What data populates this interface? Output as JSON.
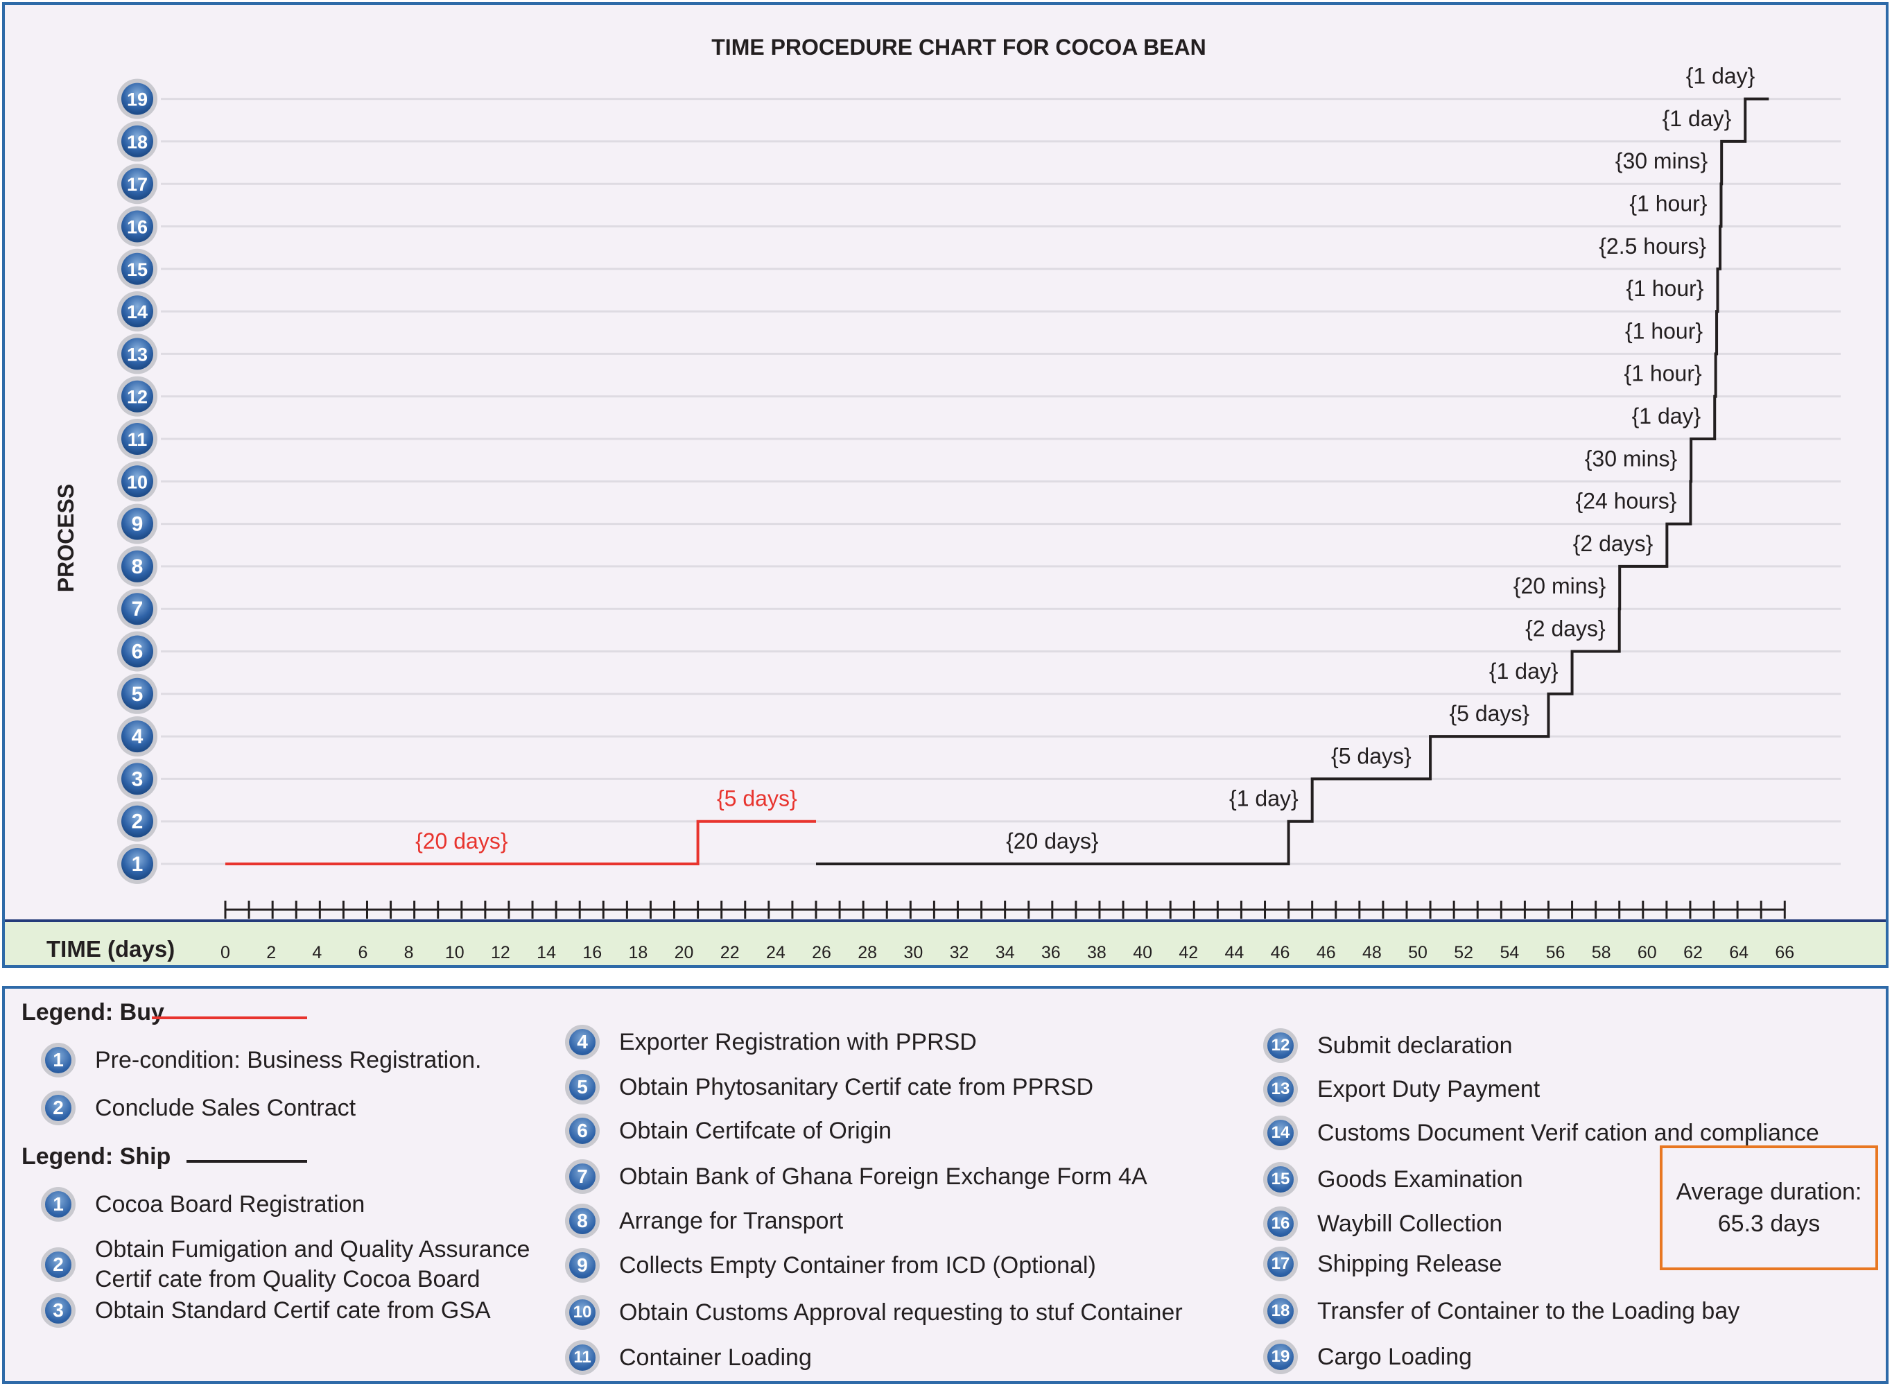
{
  "chart_data": {
    "type": "line",
    "title": "TIME PROCEDURE CHART FOR COCOA BEAN",
    "xlabel": "TIME (days)",
    "ylabel": "PROCESS",
    "xlim": [
      0,
      66
    ],
    "ylim": [
      1,
      19
    ],
    "x_ticks": [
      "0",
      "2",
      "4",
      "6",
      "8",
      "10",
      "12",
      "14",
      "16",
      "18",
      "20",
      "22",
      "24",
      "26",
      "28",
      "30",
      "32",
      "34",
      "36",
      "38",
      "40",
      "42",
      "44",
      "46",
      "46",
      "48",
      "50",
      "52",
      "54",
      "56",
      "58",
      "60",
      "62",
      "64",
      "66"
    ],
    "y_ticks": [
      "1",
      "2",
      "3",
      "4",
      "5",
      "6",
      "7",
      "8",
      "9",
      "10",
      "11",
      "12",
      "13",
      "14",
      "15",
      "16",
      "17",
      "18",
      "19"
    ],
    "series": [
      {
        "name": "Buy",
        "color": "#e8342e",
        "steps": [
          {
            "process": 1,
            "start": 0,
            "end": 20,
            "label": "{20 days}"
          },
          {
            "process": 2,
            "start": 20,
            "end": 25,
            "label": "{5 days}"
          }
        ]
      },
      {
        "name": "Ship",
        "color": "#231f20",
        "steps": [
          {
            "process": 1,
            "start": 25,
            "end": 45,
            "label": "{20 days}"
          },
          {
            "process": 2,
            "start": 45,
            "end": 46,
            "label": "{1 day}"
          },
          {
            "process": 3,
            "start": 46,
            "end": 51,
            "label": "{5 days}"
          },
          {
            "process": 4,
            "start": 51,
            "end": 56,
            "label": "{5 days}"
          },
          {
            "process": 5,
            "start": 56,
            "end": 57,
            "label": "{1 day}"
          },
          {
            "process": 6,
            "start": 57,
            "end": 59,
            "label": "{2 days}"
          },
          {
            "process": 7,
            "start": 59,
            "end": 59.014,
            "label": "{20 mins}"
          },
          {
            "process": 8,
            "start": 59.014,
            "end": 61.014,
            "label": "{2 days}"
          },
          {
            "process": 9,
            "start": 61.014,
            "end": 62.014,
            "label": "{24 hours}"
          },
          {
            "process": 10,
            "start": 62.014,
            "end": 62.035,
            "label": "{30 mins}"
          },
          {
            "process": 11,
            "start": 62.035,
            "end": 63.035,
            "label": "{1 day}"
          },
          {
            "process": 12,
            "start": 63.035,
            "end": 63.077,
            "label": "{1 hour}"
          },
          {
            "process": 13,
            "start": 63.077,
            "end": 63.118,
            "label": "{1 hour}"
          },
          {
            "process": 14,
            "start": 63.118,
            "end": 63.16,
            "label": "{1 hour}"
          },
          {
            "process": 15,
            "start": 63.16,
            "end": 63.264,
            "label": "{2.5 hours}"
          },
          {
            "process": 16,
            "start": 63.264,
            "end": 63.306,
            "label": "{1 hour}"
          },
          {
            "process": 17,
            "start": 63.306,
            "end": 63.327,
            "label": "{30 mins}"
          },
          {
            "process": 18,
            "start": 63.327,
            "end": 64.327,
            "label": "{1 day}"
          },
          {
            "process": 19,
            "start": 64.327,
            "end": 65.327,
            "label": "{1 day}"
          }
        ]
      }
    ]
  },
  "legend": {
    "buy_title": "Legend: Buy",
    "ship_title": "Legend: Ship",
    "buy_items": [
      {
        "num": "1",
        "text": "Pre-condition:  Business Registration."
      },
      {
        "num": "2",
        "text": "Conclude Sales Contract"
      }
    ],
    "ship_items": [
      {
        "num": "1",
        "text": "Cocoa Board Registration"
      },
      {
        "num": "2",
        "text": "Obtain Fumigation and Quality Assurance",
        "text2": "Certif cate from Quality Cocoa Board"
      },
      {
        "num": "3",
        "text": "Obtain Standard Certif cate  from GSA"
      },
      {
        "num": "4",
        "text": "Exporter Registration with PPRSD"
      },
      {
        "num": "5",
        "text": "Obtain Phytosanitary Certif cate  from PPRSD"
      },
      {
        "num": "6",
        "text": "Obtain  Certifcate of Origin"
      },
      {
        "num": "7",
        "text": "Obtain  Bank of Ghana Foreign Exchange Form 4A"
      },
      {
        "num": "8",
        "text": "Arrange for Transport"
      },
      {
        "num": "9",
        "text": "Collects Empty  Container from ICD (Optional)"
      },
      {
        "num": "10",
        "text": "Obtain Customs Approval requesting to stuf  Container"
      },
      {
        "num": "11",
        "text": "Container  Loading"
      },
      {
        "num": "12",
        "text": "Submit declaration"
      },
      {
        "num": "13",
        "text": "Export Duty Payment"
      },
      {
        "num": "14",
        "text": "Customs Document Verif cation and compliance"
      },
      {
        "num": "15",
        "text": "Goods Examination"
      },
      {
        "num": "16",
        "text": "Waybill Collection"
      },
      {
        "num": "17",
        "text": "Shipping Release"
      },
      {
        "num": "18",
        "text": "Transfer  of Container to the Loading bay"
      },
      {
        "num": "19",
        "text": "Cargo Loading"
      }
    ]
  },
  "average": {
    "label": "Average duration:",
    "value": "65.3 days"
  }
}
